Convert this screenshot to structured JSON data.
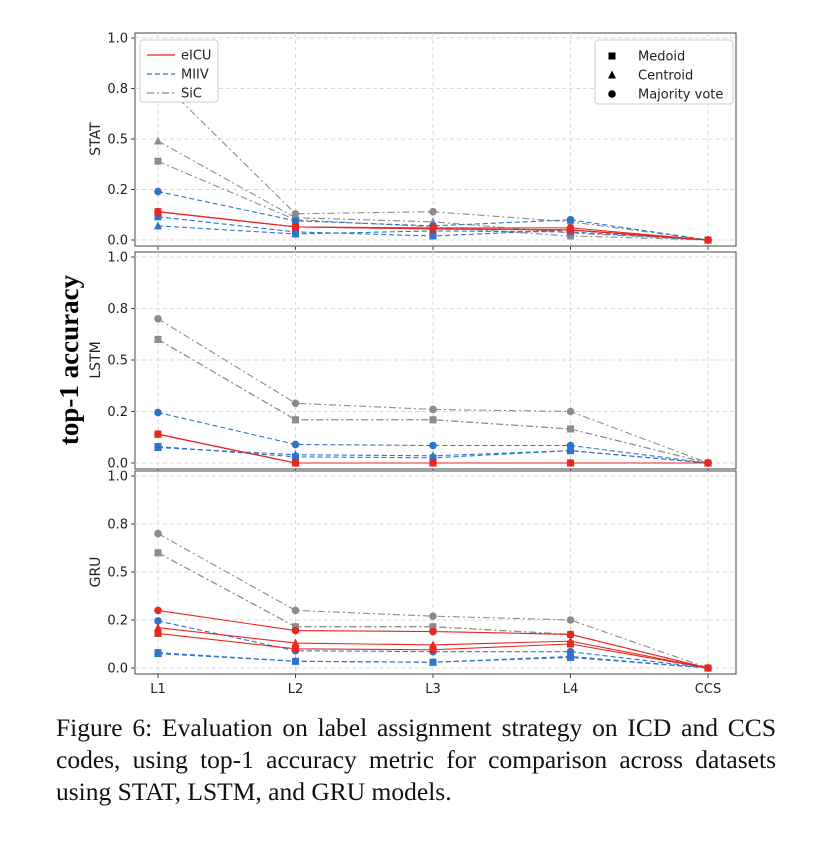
{
  "figure": {
    "shared_ylabel": "top-1 accuracy",
    "caption": "Figure 6: Evaluation on label assignment strategy on ICD and CCS codes, using top-1 accuracy metric for comparison across datasets using STAT, LSTM, and GRU models."
  },
  "legend": {
    "datasets": [
      {
        "name": "eICU",
        "color": "#e8271f",
        "dash": "solid"
      },
      {
        "name": "MIIV",
        "color": "#2f73c9",
        "dash": "dashed"
      },
      {
        "name": "SiC",
        "color": "#8c8c8c",
        "dash": "dashdot"
      }
    ],
    "strategies": [
      {
        "name": "Medoid",
        "marker": "square"
      },
      {
        "name": "Centroid",
        "marker": "triangle"
      },
      {
        "name": "Majority vote",
        "marker": "circle"
      }
    ]
  },
  "chart_data": [
    {
      "type": "line",
      "ylabel": "STAT",
      "categories": [
        "L1",
        "L2",
        "L3",
        "L4",
        "CCS"
      ],
      "yticks": [
        "0.0",
        "0.2",
        "0.5",
        "0.8",
        "1.0"
      ],
      "ylim": [
        0,
        1.0
      ],
      "grid": true,
      "legend_left": "top-left",
      "legend_right": "top-right",
      "series": [
        {
          "dataset": "eICU",
          "strategy": "Medoid",
          "values": [
            0.14,
            0.065,
            0.055,
            0.05,
            0.0
          ]
        },
        {
          "dataset": "eICU",
          "strategy": "Centroid",
          "values": [
            0.14,
            0.065,
            0.055,
            0.05,
            0.0
          ]
        },
        {
          "dataset": "eICU",
          "strategy": "Majority vote",
          "values": [
            0.14,
            0.065,
            0.06,
            0.06,
            0.0
          ]
        },
        {
          "dataset": "MIIV",
          "strategy": "Medoid",
          "values": [
            0.115,
            0.04,
            0.02,
            0.05,
            0.0
          ]
        },
        {
          "dataset": "MIIV",
          "strategy": "Centroid",
          "values": [
            0.07,
            0.03,
            0.045,
            0.04,
            0.0
          ]
        },
        {
          "dataset": "MIIV",
          "strategy": "Majority vote",
          "values": [
            0.24,
            0.095,
            0.07,
            0.1,
            0.0
          ]
        },
        {
          "dataset": "SiC",
          "strategy": "Medoid",
          "values": [
            0.39,
            0.1,
            0.065,
            0.02,
            0.0
          ]
        },
        {
          "dataset": "SiC",
          "strategy": "Centroid",
          "values": [
            0.49,
            0.11,
            0.09,
            0.035,
            0.0
          ]
        },
        {
          "dataset": "SiC",
          "strategy": "Majority vote",
          "values": [
            0.8,
            0.13,
            0.14,
            0.09,
            0.0
          ]
        }
      ]
    },
    {
      "type": "line",
      "ylabel": "LSTM",
      "categories": [
        "L1",
        "L2",
        "L3",
        "L4",
        "CCS"
      ],
      "yticks": [
        "0.0",
        "0.2",
        "0.5",
        "0.8",
        "1.0"
      ],
      "ylim": [
        0,
        1.0
      ],
      "grid": true,
      "series": [
        {
          "dataset": "eICU",
          "strategy": "Medoid",
          "values": [
            0.14,
            0.0,
            0.0,
            0.0,
            0.0
          ]
        },
        {
          "dataset": "eICU",
          "strategy": "Centroid",
          "values": [
            0.14,
            0.0,
            0.0,
            0.0,
            0.0
          ]
        },
        {
          "dataset": "eICU",
          "strategy": "Majority vote",
          "values": [
            0.14,
            0.0,
            0.0,
            0.0,
            0.0
          ]
        },
        {
          "dataset": "MIIV",
          "strategy": "Medoid",
          "values": [
            0.08,
            0.03,
            0.025,
            0.06,
            0.0
          ]
        },
        {
          "dataset": "MIIV",
          "strategy": "Centroid",
          "values": [
            0.075,
            0.04,
            0.035,
            0.06,
            0.0
          ]
        },
        {
          "dataset": "MIIV",
          "strategy": "Majority vote",
          "values": [
            0.245,
            0.09,
            0.085,
            0.085,
            0.0
          ]
        },
        {
          "dataset": "SiC",
          "strategy": "Medoid",
          "values": [
            0.6,
            0.21,
            0.21,
            0.165,
            0.0
          ]
        },
        {
          "dataset": "SiC",
          "strategy": "Centroid",
          "values": [
            0.6,
            0.21,
            0.21,
            0.165,
            0.0
          ]
        },
        {
          "dataset": "SiC",
          "strategy": "Majority vote",
          "values": [
            0.7,
            0.29,
            0.26,
            0.25,
            0.0
          ]
        }
      ]
    },
    {
      "type": "line",
      "ylabel": "GRU",
      "categories": [
        "L1",
        "L2",
        "L3",
        "L4",
        "CCS"
      ],
      "yticks": [
        "0.0",
        "0.2",
        "0.5",
        "0.8",
        "1.0"
      ],
      "ylim": [
        0,
        1.0
      ],
      "grid": true,
      "series": [
        {
          "dataset": "eICU",
          "strategy": "Medoid",
          "values": [
            0.18,
            0.1,
            0.095,
            0.125,
            0.0
          ]
        },
        {
          "dataset": "eICU",
          "strategy": "Centroid",
          "values": [
            0.21,
            0.13,
            0.12,
            0.14,
            0.0
          ]
        },
        {
          "dataset": "eICU",
          "strategy": "Majority vote",
          "values": [
            0.3,
            0.195,
            0.19,
            0.175,
            0.0
          ]
        },
        {
          "dataset": "MIIV",
          "strategy": "Medoid",
          "values": [
            0.08,
            0.035,
            0.03,
            0.055,
            0.0
          ]
        },
        {
          "dataset": "MIIV",
          "strategy": "Centroid",
          "values": [
            0.075,
            0.035,
            0.03,
            0.06,
            0.0
          ]
        },
        {
          "dataset": "MIIV",
          "strategy": "Majority vote",
          "values": [
            0.245,
            0.09,
            0.085,
            0.085,
            0.0
          ]
        },
        {
          "dataset": "SiC",
          "strategy": "Medoid",
          "values": [
            0.6,
            0.215,
            0.215,
            0.175,
            0.0
          ]
        },
        {
          "dataset": "SiC",
          "strategy": "Centroid",
          "values": [
            0.6,
            0.215,
            0.215,
            0.175,
            0.0
          ]
        },
        {
          "dataset": "SiC",
          "strategy": "Majority vote",
          "values": [
            0.7,
            0.3,
            0.27,
            0.25,
            0.0
          ]
        }
      ]
    }
  ]
}
